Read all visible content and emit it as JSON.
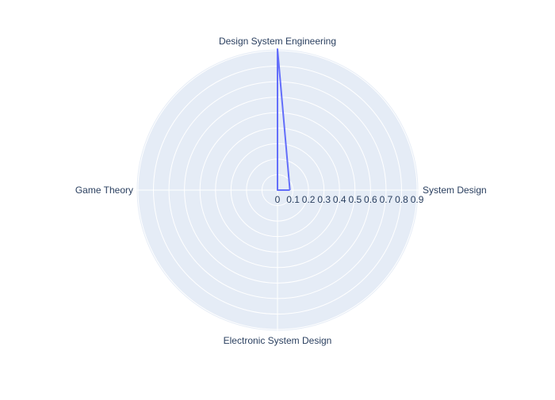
{
  "chart_data": {
    "type": "radar",
    "categories": [
      "System Design",
      "Design System Engineering",
      "Game Theory",
      "Electronic System Design"
    ],
    "series": [
      {
        "values": [
          0.08,
          0.91,
          0.0,
          0.0
        ]
      }
    ],
    "radial_range": [
      0,
      0.91
    ],
    "radial_ticks": [
      "0",
      "0.1",
      "0.2",
      "0.3",
      "0.4",
      "0.5",
      "0.6",
      "0.7",
      "0.8",
      "0.9"
    ],
    "grid": true,
    "colors": {
      "background": "#e5ecf6",
      "grid": "#ffffff",
      "series_line": "#636efa",
      "text": "#2a3f5f"
    }
  }
}
